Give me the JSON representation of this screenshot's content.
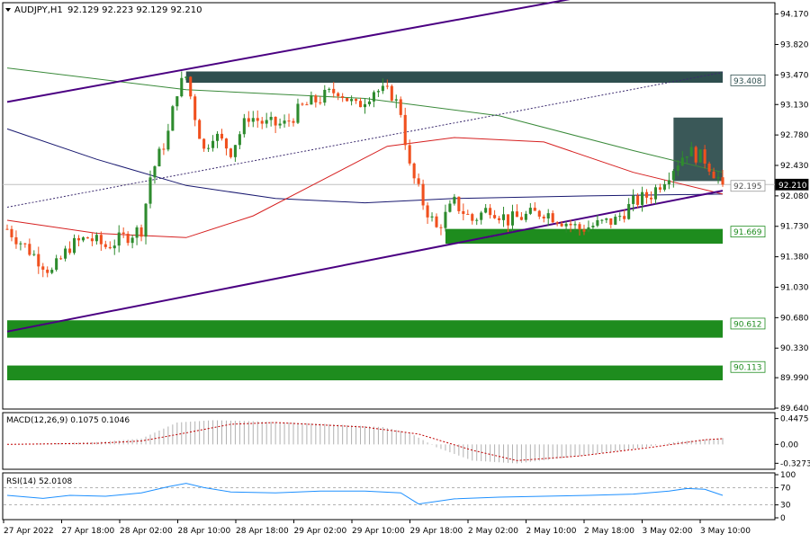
{
  "header": {
    "symbol": "AUDJPY,H1",
    "ohlc": "92.129 92.223 92.129 92.210"
  },
  "colors": {
    "bull": "#2e8b2e",
    "bear": "#f0501e",
    "zone_green": "#1e8c1e",
    "zone_dark": "#2f4f4f",
    "channel": "#4b0082",
    "ma_green": "#3a8a3a",
    "ma_red": "#d62020",
    "ma_navy": "#191970",
    "rsi_line": "#1e90ff",
    "macd_hist": "#b0b0b0",
    "macd_signal": "#c00000"
  },
  "chart_data": {
    "type": "candlestick",
    "price_axis": {
      "ticks": [
        "94.170",
        "93.820",
        "93.470",
        "93.130",
        "92.780",
        "92.430",
        "92.080",
        "91.730",
        "91.380",
        "91.030",
        "90.680",
        "90.330",
        "89.990",
        "89.640"
      ],
      "ylim": [
        89.64,
        94.29
      ]
    },
    "time_axis": {
      "ticks": [
        "27 Apr 2022",
        "27 Apr 18:00",
        "28 Apr 02:00",
        "28 Apr 10:00",
        "28 Apr 18:00",
        "29 Apr 02:00",
        "29 Apr 10:00",
        "29 Apr 18:00",
        "2 May 02:00",
        "2 May 10:00",
        "2 May 18:00",
        "3 May 02:00",
        "3 May 10:00"
      ]
    },
    "price_labels": [
      {
        "text": "93.408",
        "value": 93.408,
        "style": "dark"
      },
      {
        "text": "92.195",
        "value": 92.195,
        "style": "neutral"
      },
      {
        "text": "92.210",
        "value": 92.21,
        "style": "current"
      },
      {
        "text": "91.669",
        "value": 91.669,
        "style": "green"
      },
      {
        "text": "90.612",
        "value": 90.612,
        "style": "green"
      },
      {
        "text": "90.113",
        "value": 90.113,
        "style": "green"
      }
    ],
    "zones": [
      {
        "kind": "resistance",
        "low": 93.38,
        "high": 93.51,
        "from_bar": 40,
        "to_bar": 160,
        "color": "dark"
      },
      {
        "kind": "support",
        "low": 91.53,
        "high": 91.7,
        "from_bar": 98,
        "to_bar": 160,
        "color": "green"
      },
      {
        "kind": "support",
        "low": 90.45,
        "high": 90.65,
        "from_bar": 0,
        "to_bar": 160,
        "color": "green"
      },
      {
        "kind": "support",
        "low": 89.96,
        "high": 90.13,
        "from_bar": 0,
        "to_bar": 160,
        "color": "green"
      },
      {
        "kind": "box",
        "low": 92.25,
        "high": 92.98,
        "from_bar": 149,
        "to_bar": 160,
        "color": "dark"
      }
    ],
    "lines": [
      {
        "name": "",
        "kind": "channel-upper",
        "points": [
          [
            0,
            93.16
          ],
          [
            130,
            94.38
          ]
        ]
      },
      {
        "name": "",
        "kind": "channel-lower",
        "points": [
          [
            0,
            90.52
          ],
          [
            160,
            92.14
          ]
        ]
      },
      {
        "name": "",
        "kind": "channel-mid-dotted",
        "points": [
          [
            0,
            91.95
          ],
          [
            160,
            93.5
          ]
        ]
      }
    ],
    "moving_averages": [
      {
        "name": "",
        "color_key": "ma_green",
        "points": [
          [
            0,
            93.55
          ],
          [
            40,
            93.3
          ],
          [
            80,
            93.2
          ],
          [
            110,
            93.0
          ],
          [
            140,
            92.6
          ],
          [
            160,
            92.35
          ]
        ]
      },
      {
        "name": "",
        "color_key": "ma_navy",
        "points": [
          [
            0,
            92.85
          ],
          [
            20,
            92.5
          ],
          [
            40,
            92.2
          ],
          [
            60,
            92.05
          ],
          [
            80,
            92.0
          ],
          [
            100,
            92.05
          ],
          [
            130,
            92.08
          ],
          [
            160,
            92.1
          ]
        ]
      },
      {
        "name": "",
        "color_key": "ma_red",
        "points": [
          [
            0,
            91.8
          ],
          [
            20,
            91.65
          ],
          [
            40,
            91.6
          ],
          [
            55,
            91.85
          ],
          [
            70,
            92.25
          ],
          [
            85,
            92.65
          ],
          [
            100,
            92.75
          ],
          [
            120,
            92.7
          ],
          [
            140,
            92.35
          ],
          [
            160,
            92.1
          ]
        ]
      }
    ],
    "close_path": [
      [
        0,
        91.7
      ],
      [
        6,
        91.4
      ],
      [
        10,
        91.2
      ],
      [
        14,
        91.5
      ],
      [
        18,
        91.6
      ],
      [
        22,
        91.5
      ],
      [
        26,
        91.6
      ],
      [
        30,
        91.7
      ],
      [
        32,
        92.3
      ],
      [
        36,
        92.8
      ],
      [
        38,
        93.3
      ],
      [
        40,
        93.45
      ],
      [
        42,
        93.0
      ],
      [
        44,
        92.6
      ],
      [
        46,
        92.8
      ],
      [
        50,
        92.6
      ],
      [
        54,
        93.0
      ],
      [
        58,
        92.9
      ],
      [
        62,
        92.9
      ],
      [
        66,
        93.1
      ],
      [
        70,
        93.2
      ],
      [
        74,
        93.3
      ],
      [
        78,
        93.1
      ],
      [
        82,
        93.3
      ],
      [
        86,
        93.25
      ],
      [
        88,
        93.05
      ],
      [
        90,
        92.4
      ],
      [
        93,
        92.0
      ],
      [
        96,
        91.7
      ],
      [
        100,
        92.0
      ],
      [
        104,
        91.8
      ],
      [
        108,
        91.95
      ],
      [
        112,
        91.8
      ],
      [
        116,
        91.85
      ],
      [
        120,
        91.9
      ],
      [
        124,
        91.8
      ],
      [
        128,
        91.7
      ],
      [
        132,
        91.75
      ],
      [
        136,
        91.8
      ],
      [
        140,
        92.0
      ],
      [
        144,
        92.1
      ],
      [
        148,
        92.35
      ],
      [
        152,
        92.6
      ],
      [
        156,
        92.5
      ],
      [
        160,
        92.21
      ]
    ],
    "last_price": 92.21,
    "macd": {
      "label": "MACD(12,26,9) 0.1075 0.1046",
      "ticks": [
        "0.4475",
        "0.00",
        "-0.3273"
      ],
      "ylim": [
        -0.4,
        0.52
      ],
      "hist_path": [
        [
          0,
          0.0
        ],
        [
          10,
          0.02
        ],
        [
          20,
          0.04
        ],
        [
          30,
          0.1
        ],
        [
          38,
          0.38
        ],
        [
          46,
          0.42
        ],
        [
          56,
          0.4
        ],
        [
          70,
          0.36
        ],
        [
          84,
          0.3
        ],
        [
          90,
          0.2
        ],
        [
          96,
          -0.05
        ],
        [
          104,
          -0.28
        ],
        [
          114,
          -0.33
        ],
        [
          126,
          -0.22
        ],
        [
          140,
          -0.08
        ],
        [
          150,
          0.05
        ],
        [
          160,
          0.11
        ]
      ],
      "signal_path": [
        [
          0,
          0.0
        ],
        [
          20,
          0.02
        ],
        [
          30,
          0.06
        ],
        [
          40,
          0.2
        ],
        [
          50,
          0.35
        ],
        [
          60,
          0.38
        ],
        [
          80,
          0.3
        ],
        [
          92,
          0.18
        ],
        [
          104,
          -0.1
        ],
        [
          114,
          -0.28
        ],
        [
          128,
          -0.2
        ],
        [
          144,
          -0.05
        ],
        [
          156,
          0.08
        ],
        [
          160,
          0.1
        ]
      ]
    },
    "rsi": {
      "label": "RSI(14) 52.0108",
      "ticks": [
        "100",
        "70",
        "30",
        "0"
      ],
      "ylim": [
        0,
        100
      ],
      "levels": [
        70,
        30
      ],
      "path": [
        [
          0,
          52
        ],
        [
          8,
          45
        ],
        [
          14,
          52
        ],
        [
          22,
          50
        ],
        [
          30,
          58
        ],
        [
          36,
          72
        ],
        [
          40,
          80
        ],
        [
          44,
          70
        ],
        [
          50,
          60
        ],
        [
          60,
          58
        ],
        [
          70,
          62
        ],
        [
          80,
          62
        ],
        [
          88,
          58
        ],
        [
          92,
          32
        ],
        [
          100,
          44
        ],
        [
          110,
          48
        ],
        [
          120,
          50
        ],
        [
          130,
          52
        ],
        [
          140,
          55
        ],
        [
          148,
          62
        ],
        [
          152,
          68
        ],
        [
          156,
          66
        ],
        [
          160,
          52
        ]
      ]
    }
  }
}
